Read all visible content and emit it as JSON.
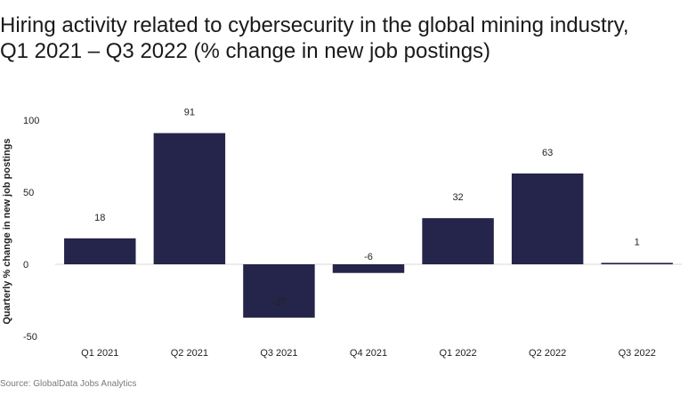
{
  "title": "Hiring activity related to cybersecurity in the global mining industry, Q1 2021 – Q3 2022 (% change in new job postings)",
  "source": "Source: GlobalData Jobs Analytics",
  "colors": {
    "bar": "#25244a",
    "zero_line": "#d9d9d9",
    "text": "#222222"
  },
  "chart_data": {
    "type": "bar",
    "categories": [
      "Q1 2021",
      "Q2 2021",
      "Q3 2021",
      "Q4 2021",
      "Q1 2022",
      "Q2 2022",
      "Q3 2022"
    ],
    "values": [
      18,
      91,
      -37,
      -6,
      32,
      63,
      1
    ],
    "data_labels": [
      "18",
      "91",
      "-37",
      "-6",
      "32",
      "63",
      "1"
    ],
    "title": "Hiring activity related to cybersecurity in the global mining industry, Q1 2021 – Q3 2022 (% change in new job postings)",
    "xlabel": "",
    "ylabel": "Quarterly % change in new job postings",
    "ylim": [
      -50,
      100
    ],
    "yticks": [
      100,
      50,
      0,
      -50
    ],
    "grid": false,
    "legend": "none"
  }
}
